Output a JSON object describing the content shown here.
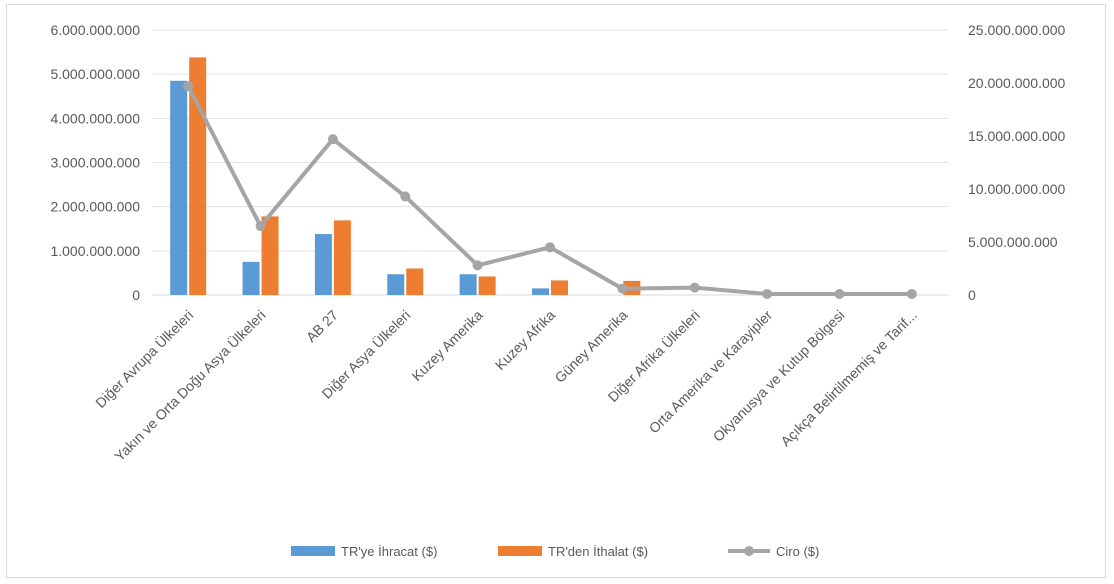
{
  "chart_data": {
    "type": "bar",
    "categories": [
      "Diğer Avrupa Ülkeleri",
      "Yakın ve Orta Doğu Asya Ülkeleri",
      "AB 27",
      "Diğer Asya Ülkeleri",
      "Kuzey Amerika",
      "Kuzey Afrika",
      "Güney Amerika",
      "Diğer Afrika Ülkeleri",
      "Orta Amerika ve Karayipler",
      "Okyanusya ve Kutup Bölgesi",
      "Açıkça Belirtilmemiş ve Tarif..."
    ],
    "series": [
      {
        "name": "TR'ye İhracat ($)",
        "type": "bar",
        "axis": "left",
        "color": "#5b9bd5",
        "values": [
          4850000000,
          750000000,
          1380000000,
          470000000,
          470000000,
          150000000,
          0,
          0,
          0,
          0,
          0
        ]
      },
      {
        "name": "TR'den İthalat ($)",
        "type": "bar",
        "axis": "left",
        "color": "#ed7d31",
        "values": [
          5380000000,
          1780000000,
          1690000000,
          600000000,
          420000000,
          330000000,
          320000000,
          0,
          0,
          0,
          0
        ]
      },
      {
        "name": "Ciro ($)",
        "type": "line",
        "axis": "right",
        "color": "#a5a5a5",
        "values": [
          19700000000,
          6500000000,
          14700000000,
          9300000000,
          2800000000,
          4500000000,
          600000000,
          700000000,
          100000000,
          100000000,
          100000000
        ]
      }
    ],
    "left_axis": {
      "ylim": [
        0,
        6000000000
      ],
      "ticks": [
        "0",
        "1.000.000.000",
        "2.000.000.000",
        "3.000.000.000",
        "4.000.000.000",
        "5.000.000.000",
        "6.000.000.000"
      ]
    },
    "right_axis": {
      "ylim": [
        0,
        25000000000
      ],
      "ticks": [
        "0",
        "5.000.000.000",
        "10.000.000.000",
        "15.000.000.000",
        "20.000.000.000",
        "25.000.000.000"
      ]
    },
    "grid": true,
    "legend_position": "bottom",
    "title": "",
    "xlabel": "",
    "ylabel": ""
  }
}
